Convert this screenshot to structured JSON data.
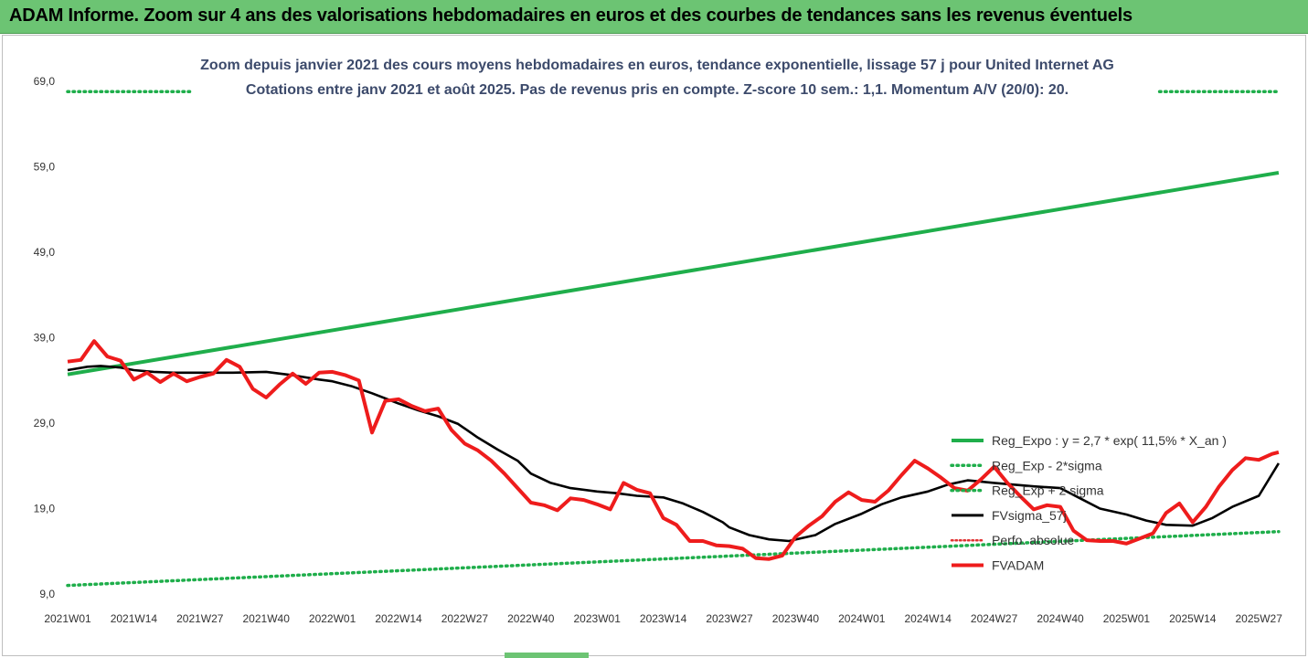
{
  "header": {
    "title": "ADAM Informe. Zoom sur 4 ans des valorisations hebdomadaires en euros et des courbes de tendances sans les revenus éventuels"
  },
  "colors": {
    "header_bg": "#6cc473",
    "reg_expo": "#1fae4b",
    "sigma": "#1fae4b",
    "fvsigma": "#000000",
    "perfo": "#e03030",
    "fvadam": "#ee1c1c"
  },
  "chart_data": {
    "type": "line",
    "title_lines": [
      "Zoom depuis janvier 2021 des cours moyens hebdomadaires en euros, tendance exponentielle, lissage 57 j pour United Internet AG",
      "Cotations entre janv 2021 et août 2025. Pas de revenus pris en compte. Z-score 10 sem.: 1,1. Momentum A/V (20/0): 20."
    ],
    "y_ticks": [
      "9,0",
      "19,0",
      "29,0",
      "39,0",
      "49,0",
      "59,0",
      "69,0"
    ],
    "y_values": [
      9,
      19,
      29,
      39,
      49,
      59,
      69
    ],
    "ylim": [
      9,
      69
    ],
    "x_ticks": [
      "2021W01",
      "2021W14",
      "2021W27",
      "2021W40",
      "2022W01",
      "2022W14",
      "2022W27",
      "2022W40",
      "2023W01",
      "2023W14",
      "2023W27",
      "2023W40",
      "2024W01",
      "2024W14",
      "2024W27",
      "2024W40",
      "2025W01",
      "2025W14",
      "2025W27"
    ],
    "x_start_index": 0,
    "x_end_index": 18.3,
    "legend": [
      {
        "key": "reg_expo",
        "label": "Reg_Expo : y = 2,7 * exp( 11,5% *  X_an )",
        "style": "solid-thick"
      },
      {
        "key": "minus2",
        "label": "Reg_Exp - 2*sigma",
        "style": "dotted"
      },
      {
        "key": "plus2",
        "label": "Reg_Exp + 2 sigma",
        "style": "dotted"
      },
      {
        "key": "fvsigma",
        "label": "FVsigma_57j",
        "style": "solid"
      },
      {
        "key": "perfo",
        "label": "Perfo. absolue",
        "style": "dotted"
      },
      {
        "key": "fvadam",
        "label": "FVADAM",
        "style": "solid-thick"
      }
    ],
    "series": {
      "reg_expo": {
        "x": [
          0,
          18.3
        ],
        "y": [
          34.7,
          58.3
        ]
      },
      "minus2": {
        "x": [
          0,
          18.3
        ],
        "y": [
          10.0,
          16.3
        ]
      },
      "plus2": {
        "x": [
          0,
          1.9,
          16.5,
          18.3
        ],
        "y": [
          67.8,
          67.8,
          67.8,
          67.8
        ]
      },
      "fvsigma": {
        "x": [
          0,
          0.3,
          0.5,
          0.8,
          1.0,
          1.3,
          1.6,
          2.0,
          2.5,
          3.0,
          3.4,
          3.8,
          4.0,
          4.3,
          4.6,
          5.0,
          5.3,
          5.6,
          5.9,
          6.2,
          6.5,
          6.8,
          7.0,
          7.3,
          7.6,
          8.0,
          8.3,
          8.6,
          9.0,
          9.3,
          9.6,
          9.9,
          10.0,
          10.3,
          10.6,
          10.9,
          11.3,
          11.6,
          12.0,
          12.3,
          12.6,
          13.0,
          13.3,
          13.6,
          14.0,
          14.3,
          14.6,
          15.0,
          15.3,
          15.6,
          16.0,
          16.3,
          16.6,
          17.0,
          17.3,
          17.6,
          18.0,
          18.3
        ],
        "y": [
          35.2,
          35.6,
          35.7,
          35.5,
          35.2,
          35.0,
          34.9,
          34.9,
          34.9,
          35.0,
          34.6,
          34.1,
          33.9,
          33.3,
          32.5,
          31.3,
          30.5,
          29.8,
          28.9,
          27.3,
          25.9,
          24.6,
          23.1,
          22.0,
          21.4,
          21.0,
          20.8,
          20.5,
          20.3,
          19.6,
          18.6,
          17.4,
          16.8,
          15.9,
          15.4,
          15.2,
          15.9,
          17.2,
          18.4,
          19.5,
          20.3,
          21.0,
          21.8,
          22.3,
          22.0,
          21.8,
          21.6,
          21.4,
          20.2,
          19.0,
          18.3,
          17.6,
          17.1,
          17.0,
          17.9,
          19.2,
          20.5,
          24.3
        ]
      },
      "fvadam": {
        "x": [
          0,
          0.2,
          0.4,
          0.6,
          0.8,
          1.0,
          1.2,
          1.4,
          1.6,
          1.8,
          2.0,
          2.2,
          2.4,
          2.6,
          2.8,
          3.0,
          3.2,
          3.4,
          3.6,
          3.8,
          4.0,
          4.2,
          4.4,
          4.6,
          4.8,
          5.0,
          5.2,
          5.4,
          5.6,
          5.8,
          6.0,
          6.2,
          6.4,
          6.6,
          6.8,
          7.0,
          7.2,
          7.4,
          7.6,
          7.8,
          8.0,
          8.2,
          8.4,
          8.6,
          8.8,
          9.0,
          9.2,
          9.4,
          9.6,
          9.8,
          10.0,
          10.2,
          10.4,
          10.6,
          10.8,
          11.0,
          11.2,
          11.4,
          11.6,
          11.8,
          12.0,
          12.2,
          12.4,
          12.6,
          12.8,
          13.0,
          13.2,
          13.4,
          13.6,
          13.8,
          14.0,
          14.2,
          14.4,
          14.6,
          14.8,
          15.0,
          15.2,
          15.4,
          15.6,
          15.8,
          16.0,
          16.2,
          16.4,
          16.6,
          16.8,
          17.0,
          17.2,
          17.4,
          17.6,
          17.8,
          18.0,
          18.2,
          18.3
        ],
        "y": [
          36.2,
          36.4,
          38.6,
          36.8,
          36.3,
          34.1,
          34.9,
          33.8,
          34.8,
          33.9,
          34.4,
          34.8,
          36.4,
          35.6,
          33.0,
          32.0,
          33.5,
          34.8,
          33.6,
          34.9,
          35.0,
          34.6,
          34.0,
          27.9,
          31.6,
          31.8,
          31.0,
          30.4,
          30.7,
          28.2,
          26.6,
          25.8,
          24.6,
          23.1,
          21.4,
          19.7,
          19.4,
          18.8,
          20.2,
          20.0,
          19.5,
          18.9,
          22.0,
          21.2,
          20.8,
          17.9,
          17.1,
          15.2,
          15.2,
          14.7,
          14.6,
          14.3,
          13.2,
          13.1,
          13.5,
          15.7,
          17.0,
          18.1,
          19.8,
          20.9,
          20.0,
          19.8,
          21.1,
          22.9,
          24.6,
          23.7,
          22.6,
          21.4,
          21.1,
          22.4,
          23.9,
          22.0,
          20.4,
          18.9,
          19.4,
          19.2,
          16.4,
          15.3,
          15.2,
          15.2,
          14.9,
          15.5,
          16.1,
          18.5,
          19.6,
          17.4,
          19.2,
          21.6,
          23.5,
          24.9,
          24.7,
          25.4,
          25.6
        ]
      }
    }
  }
}
